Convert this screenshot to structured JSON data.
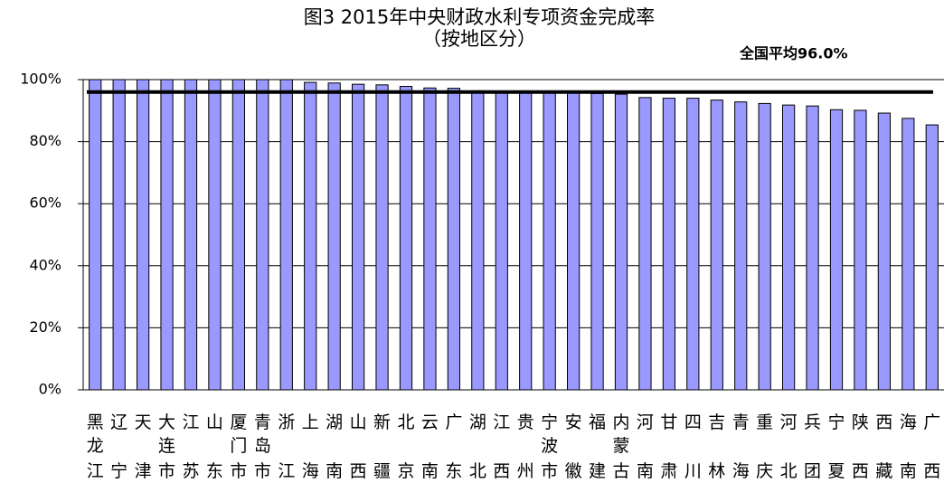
{
  "chart_data": {
    "type": "bar",
    "title": "图3  2015年中央财政水利专项资金完成率",
    "subtitle": "（按地区分）",
    "categories": [
      "黑龙江",
      "辽宁",
      "天津",
      "大连市",
      "江苏",
      "山东",
      "厦门市",
      "青岛市",
      "浙江",
      "上海",
      "湖南",
      "山西",
      "新疆",
      "北京",
      "云南",
      "广东",
      "湖北",
      "江西",
      "贵州",
      "宁波市",
      "安徽",
      "福建",
      "内蒙古",
      "河南",
      "甘肃",
      "四川",
      "吉林",
      "青海",
      "重庆",
      "河北",
      "兵团",
      "宁夏",
      "陕西",
      "西藏",
      "海南",
      "广西"
    ],
    "values": [
      100,
      100,
      100,
      100,
      100,
      100,
      100,
      100,
      100,
      99.1,
      98.9,
      98.5,
      98.3,
      97.8,
      97.3,
      97.2,
      96.4,
      96.2,
      96.2,
      96.0,
      96.0,
      95.5,
      95.3,
      94.2,
      94.0,
      94.0,
      93.4,
      92.8,
      92.3,
      91.8,
      91.5,
      90.3,
      90.1,
      89.2,
      87.5,
      85.4
    ],
    "color": "#9999ff",
    "average": {
      "label": "全国平均96.0%",
      "value": 96
    },
    "ylim": [
      0,
      100
    ],
    "yticks": [
      {
        "value": 0,
        "label": "0%"
      },
      {
        "value": 20,
        "label": "20%"
      },
      {
        "value": 40,
        "label": "40%"
      },
      {
        "value": 60,
        "label": "60%"
      },
      {
        "value": 80,
        "label": "80%"
      },
      {
        "value": 100,
        "label": "100%"
      }
    ],
    "grid": true
  }
}
